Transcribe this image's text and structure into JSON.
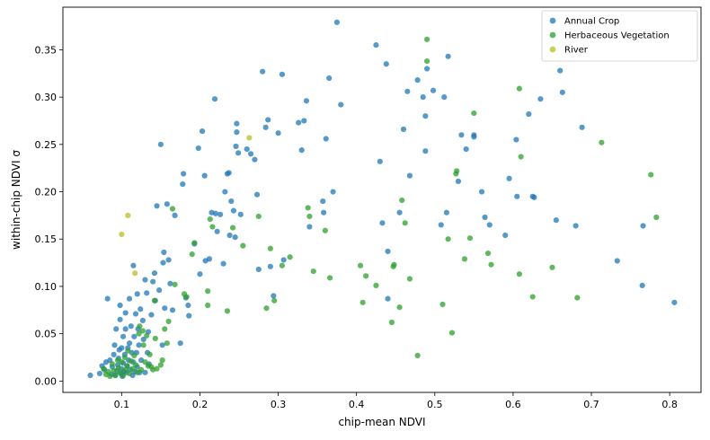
{
  "chart_data": {
    "type": "scatter",
    "title": "",
    "xlabel": "chip-mean NDVI",
    "ylabel": "within-chip NDVI σ",
    "xlim": [
      0.025,
      0.84
    ],
    "ylim": [
      -0.012,
      0.395
    ],
    "xticks": [
      0.1,
      0.2,
      0.3,
      0.4,
      0.5,
      0.6,
      0.7,
      0.8
    ],
    "yticks": [
      0.0,
      0.05,
      0.1,
      0.15,
      0.2,
      0.25,
      0.3,
      0.35
    ],
    "xtick_labels": [
      "0.1",
      "0.2",
      "0.3",
      "0.4",
      "0.5",
      "0.6",
      "0.7",
      "0.8"
    ],
    "ytick_labels": [
      "0.00",
      "0.05",
      "0.10",
      "0.15",
      "0.20",
      "0.25",
      "0.30",
      "0.35"
    ],
    "grid": false,
    "legend_position": "top-right",
    "series": [
      {
        "name": "Annual Crop",
        "color": "#1f77b4",
        "points": [
          [
            0.06,
            0.006
          ],
          [
            0.072,
            0.008
          ],
          [
            0.075,
            0.016
          ],
          [
            0.078,
            0.012
          ],
          [
            0.08,
            0.02
          ],
          [
            0.082,
            0.087
          ],
          [
            0.085,
            0.022
          ],
          [
            0.087,
            0.007
          ],
          [
            0.088,
            0.015
          ],
          [
            0.09,
            0.028
          ],
          [
            0.091,
            0.038
          ],
          [
            0.092,
            0.006
          ],
          [
            0.093,
            0.055
          ],
          [
            0.094,
            0.011
          ],
          [
            0.095,
            0.017
          ],
          [
            0.096,
            0.024
          ],
          [
            0.097,
            0.033
          ],
          [
            0.098,
            0.065
          ],
          [
            0.098,
            0.08
          ],
          [
            0.099,
            0.008
          ],
          [
            0.1,
            0.013
          ],
          [
            0.1,
            0.035
          ],
          [
            0.101,
            0.005
          ],
          [
            0.102,
            0.019
          ],
          [
            0.102,
            0.047
          ],
          [
            0.103,
            0.01
          ],
          [
            0.104,
            0.028
          ],
          [
            0.105,
            0.072
          ],
          [
            0.105,
            0.055
          ],
          [
            0.106,
            0.009
          ],
          [
            0.107,
            0.016
          ],
          [
            0.108,
            0.035
          ],
          [
            0.109,
            0.022
          ],
          [
            0.11,
            0.087
          ],
          [
            0.11,
            0.04
          ],
          [
            0.111,
            0.012
          ],
          [
            0.112,
            0.058
          ],
          [
            0.113,
            0.03
          ],
          [
            0.114,
            0.006
          ],
          [
            0.115,
            0.02
          ],
          [
            0.115,
            0.122
          ],
          [
            0.116,
            0.047
          ],
          [
            0.117,
            0.01
          ],
          [
            0.118,
            0.071
          ],
          [
            0.119,
            0.03
          ],
          [
            0.12,
            0.092
          ],
          [
            0.12,
            0.015
          ],
          [
            0.121,
            0.055
          ],
          [
            0.122,
            0.038
          ],
          [
            0.123,
            0.009
          ],
          [
            0.124,
            0.076
          ],
          [
            0.125,
            0.022
          ],
          [
            0.127,
            0.064
          ],
          [
            0.128,
            0.044
          ],
          [
            0.13,
            0.107
          ],
          [
            0.13,
            0.009
          ],
          [
            0.132,
            0.093
          ],
          [
            0.133,
            0.03
          ],
          [
            0.134,
            0.052
          ],
          [
            0.135,
            0.018
          ],
          [
            0.138,
            0.07
          ],
          [
            0.14,
            0.105
          ],
          [
            0.142,
            0.114
          ],
          [
            0.143,
            0.085
          ],
          [
            0.145,
            0.185
          ],
          [
            0.148,
            0.096
          ],
          [
            0.15,
            0.25
          ],
          [
            0.152,
            0.038
          ],
          [
            0.153,
            0.125
          ],
          [
            0.154,
            0.136
          ],
          [
            0.155,
            0.077
          ],
          [
            0.158,
            0.187
          ],
          [
            0.16,
            0.128
          ],
          [
            0.162,
            0.103
          ],
          [
            0.165,
            0.075
          ],
          [
            0.168,
            0.175
          ],
          [
            0.175,
            0.04
          ],
          [
            0.178,
            0.208
          ],
          [
            0.179,
            0.219
          ],
          [
            0.182,
            0.088
          ],
          [
            0.185,
            0.08
          ],
          [
            0.186,
            0.069
          ],
          [
            0.193,
            0.145
          ],
          [
            0.198,
            0.246
          ],
          [
            0.2,
            0.113
          ],
          [
            0.203,
            0.264
          ],
          [
            0.206,
            0.217
          ],
          [
            0.207,
            0.127
          ],
          [
            0.212,
            0.129
          ],
          [
            0.215,
            0.178
          ],
          [
            0.219,
            0.298
          ],
          [
            0.22,
            0.177
          ],
          [
            0.222,
            0.158
          ],
          [
            0.226,
            0.176
          ],
          [
            0.23,
            0.124
          ],
          [
            0.232,
            0.2
          ],
          [
            0.235,
            0.219
          ],
          [
            0.237,
            0.22
          ],
          [
            0.238,
            0.154
          ],
          [
            0.24,
            0.19
          ],
          [
            0.243,
            0.18
          ],
          [
            0.245,
            0.152
          ],
          [
            0.246,
            0.248
          ],
          [
            0.247,
            0.263
          ],
          [
            0.247,
            0.272
          ],
          [
            0.249,
            0.241
          ],
          [
            0.252,
            0.176
          ],
          [
            0.26,
            0.245
          ],
          [
            0.265,
            0.24
          ],
          [
            0.27,
            0.234
          ],
          [
            0.273,
            0.197
          ],
          [
            0.275,
            0.118
          ],
          [
            0.28,
            0.327
          ],
          [
            0.284,
            0.268
          ],
          [
            0.287,
            0.276
          ],
          [
            0.29,
            0.121
          ],
          [
            0.294,
            0.09
          ],
          [
            0.3,
            0.262
          ],
          [
            0.305,
            0.324
          ],
          [
            0.307,
            0.128
          ],
          [
            0.326,
            0.273
          ],
          [
            0.33,
            0.244
          ],
          [
            0.333,
            0.275
          ],
          [
            0.336,
            0.296
          ],
          [
            0.34,
            0.163
          ],
          [
            0.357,
            0.19
          ],
          [
            0.358,
            0.178
          ],
          [
            0.361,
            0.256
          ],
          [
            0.365,
            0.32
          ],
          [
            0.37,
            0.2
          ],
          [
            0.375,
            0.379
          ],
          [
            0.38,
            0.292
          ],
          [
            0.425,
            0.355
          ],
          [
            0.43,
            0.232
          ],
          [
            0.433,
            0.167
          ],
          [
            0.438,
            0.335
          ],
          [
            0.44,
            0.137
          ],
          [
            0.44,
            0.087
          ],
          [
            0.455,
            0.178
          ],
          [
            0.46,
            0.266
          ],
          [
            0.465,
            0.306
          ],
          [
            0.468,
            0.217
          ],
          [
            0.478,
            0.318
          ],
          [
            0.485,
            0.3
          ],
          [
            0.488,
            0.28
          ],
          [
            0.488,
            0.243
          ],
          [
            0.49,
            0.33
          ],
          [
            0.498,
            0.307
          ],
          [
            0.508,
            0.165
          ],
          [
            0.512,
            0.3
          ],
          [
            0.515,
            0.178
          ],
          [
            0.517,
            0.343
          ],
          [
            0.53,
            0.211
          ],
          [
            0.534,
            0.26
          ],
          [
            0.54,
            0.245
          ],
          [
            0.55,
            0.258
          ],
          [
            0.55,
            0.26
          ],
          [
            0.56,
            0.2
          ],
          [
            0.564,
            0.173
          ],
          [
            0.57,
            0.165
          ],
          [
            0.59,
            0.154
          ],
          [
            0.595,
            0.214
          ],
          [
            0.604,
            0.255
          ],
          [
            0.605,
            0.195
          ],
          [
            0.62,
            0.282
          ],
          [
            0.625,
            0.195
          ],
          [
            0.627,
            0.194
          ],
          [
            0.635,
            0.298
          ],
          [
            0.655,
            0.17
          ],
          [
            0.66,
            0.328
          ],
          [
            0.663,
            0.305
          ],
          [
            0.68,
            0.164
          ],
          [
            0.688,
            0.268
          ],
          [
            0.733,
            0.127
          ],
          [
            0.765,
            0.101
          ],
          [
            0.766,
            0.164
          ],
          [
            0.806,
            0.083
          ]
        ]
      },
      {
        "name": "Herbaceous Vegetation",
        "color": "#2ca02c",
        "points": [
          [
            0.077,
            0.013
          ],
          [
            0.08,
            0.007
          ],
          [
            0.083,
            0.01
          ],
          [
            0.085,
            0.005
          ],
          [
            0.088,
            0.018
          ],
          [
            0.09,
            0.011
          ],
          [
            0.092,
            0.006
          ],
          [
            0.095,
            0.022
          ],
          [
            0.096,
            0.014
          ],
          [
            0.098,
            0.009
          ],
          [
            0.1,
            0.02
          ],
          [
            0.102,
            0.006
          ],
          [
            0.104,
            0.025
          ],
          [
            0.105,
            0.012
          ],
          [
            0.107,
            0.016
          ],
          [
            0.108,
            0.032
          ],
          [
            0.11,
            0.008
          ],
          [
            0.112,
            0.021
          ],
          [
            0.114,
            0.013
          ],
          [
            0.116,
            0.027
          ],
          [
            0.118,
            0.017
          ],
          [
            0.12,
            0.009
          ],
          [
            0.122,
            0.05
          ],
          [
            0.123,
            0.058
          ],
          [
            0.125,
            0.012
          ],
          [
            0.127,
            0.053
          ],
          [
            0.128,
            0.038
          ],
          [
            0.13,
            0.02
          ],
          [
            0.132,
            0.048
          ],
          [
            0.134,
            0.016
          ],
          [
            0.136,
            0.028
          ],
          [
            0.138,
            0.015
          ],
          [
            0.14,
            0.012
          ],
          [
            0.142,
            0.085
          ],
          [
            0.143,
            0.045
          ],
          [
            0.145,
            0.013
          ],
          [
            0.15,
            0.017
          ],
          [
            0.152,
            0.022
          ],
          [
            0.155,
            0.055
          ],
          [
            0.158,
            0.04
          ],
          [
            0.16,
            0.063
          ],
          [
            0.165,
            0.182
          ],
          [
            0.168,
            0.102
          ],
          [
            0.18,
            0.092
          ],
          [
            0.183,
            0.089
          ],
          [
            0.19,
            0.134
          ],
          [
            0.193,
            0.146
          ],
          [
            0.21,
            0.095
          ],
          [
            0.21,
            0.08
          ],
          [
            0.213,
            0.171
          ],
          [
            0.216,
            0.163
          ],
          [
            0.235,
            0.074
          ],
          [
            0.242,
            0.162
          ],
          [
            0.255,
            0.143
          ],
          [
            0.275,
            0.174
          ],
          [
            0.285,
            0.077
          ],
          [
            0.29,
            0.14
          ],
          [
            0.295,
            0.085
          ],
          [
            0.305,
            0.122
          ],
          [
            0.315,
            0.131
          ],
          [
            0.338,
            0.183
          ],
          [
            0.34,
            0.174
          ],
          [
            0.345,
            0.116
          ],
          [
            0.36,
            0.159
          ],
          [
            0.366,
            0.109
          ],
          [
            0.405,
            0.122
          ],
          [
            0.408,
            0.083
          ],
          [
            0.412,
            0.111
          ],
          [
            0.425,
            0.101
          ],
          [
            0.445,
            0.062
          ],
          [
            0.447,
            0.121
          ],
          [
            0.448,
            0.123
          ],
          [
            0.455,
            0.078
          ],
          [
            0.458,
            0.191
          ],
          [
            0.462,
            0.167
          ],
          [
            0.468,
            0.108
          ],
          [
            0.478,
            0.027
          ],
          [
            0.49,
            0.361
          ],
          [
            0.49,
            0.338
          ],
          [
            0.51,
            0.081
          ],
          [
            0.517,
            0.15
          ],
          [
            0.522,
            0.051
          ],
          [
            0.527,
            0.219
          ],
          [
            0.528,
            0.222
          ],
          [
            0.538,
            0.129
          ],
          [
            0.545,
            0.151
          ],
          [
            0.55,
            0.283
          ],
          [
            0.568,
            0.135
          ],
          [
            0.572,
            0.123
          ],
          [
            0.608,
            0.309
          ],
          [
            0.608,
            0.113
          ],
          [
            0.61,
            0.237
          ],
          [
            0.625,
            0.089
          ],
          [
            0.65,
            0.12
          ],
          [
            0.682,
            0.088
          ],
          [
            0.713,
            0.252
          ],
          [
            0.776,
            0.218
          ],
          [
            0.783,
            0.173
          ]
        ]
      },
      {
        "name": "River",
        "color": "#bcbd22",
        "points": [
          [
            0.1,
            0.155
          ],
          [
            0.108,
            0.175
          ],
          [
            0.117,
            0.114
          ],
          [
            0.263,
            0.257
          ]
        ]
      }
    ]
  }
}
